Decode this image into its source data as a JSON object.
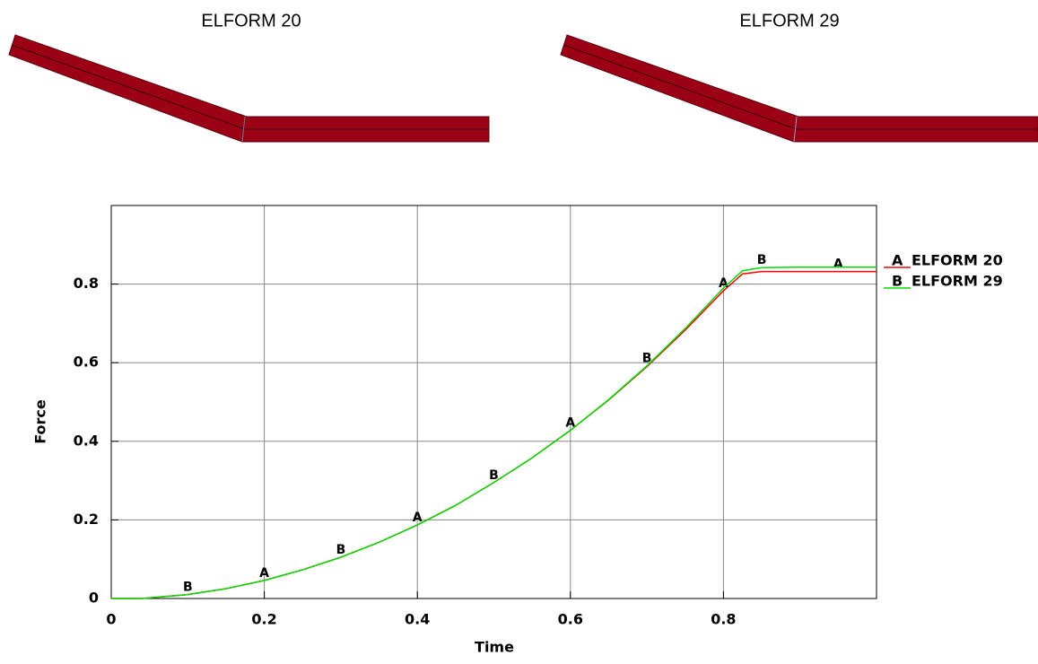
{
  "panels": [
    {
      "title": "ELFORM 20"
    },
    {
      "title": "ELFORM 29"
    }
  ],
  "chart_data": {
    "type": "line",
    "x_label": "Time",
    "y_label": "Force",
    "x": [
      0,
      0.04,
      0.1,
      0.15,
      0.2,
      0.25,
      0.3,
      0.35,
      0.4,
      0.45,
      0.5,
      0.55,
      0.6,
      0.65,
      0.7,
      0.75,
      0.8,
      0.825,
      0.85,
      0.9,
      0.95,
      1.0
    ],
    "series": [
      {
        "name": "ELFORM 20",
        "symbol": "A",
        "color": "#ff0000",
        "values": [
          0,
          0,
          0.01,
          0.025,
          0.046,
          0.073,
          0.105,
          0.143,
          0.187,
          0.237,
          0.295,
          0.358,
          0.428,
          0.505,
          0.59,
          0.683,
          0.783,
          0.826,
          0.832,
          0.832,
          0.832,
          0.832
        ]
      },
      {
        "name": "ELFORM 29",
        "symbol": "B",
        "color": "#00dd00",
        "values": [
          0,
          0,
          0.01,
          0.025,
          0.046,
          0.073,
          0.105,
          0.143,
          0.187,
          0.237,
          0.295,
          0.358,
          0.428,
          0.506,
          0.592,
          0.687,
          0.79,
          0.834,
          0.842,
          0.843,
          0.843,
          0.843
        ]
      }
    ],
    "xlim": [
      0,
      1
    ],
    "ylim": [
      0,
      1
    ],
    "xticks": [
      0,
      0.2,
      0.4,
      0.6,
      0.8
    ],
    "yticks": [
      0,
      0.2,
      0.4,
      0.6,
      0.8
    ],
    "grid": true
  }
}
